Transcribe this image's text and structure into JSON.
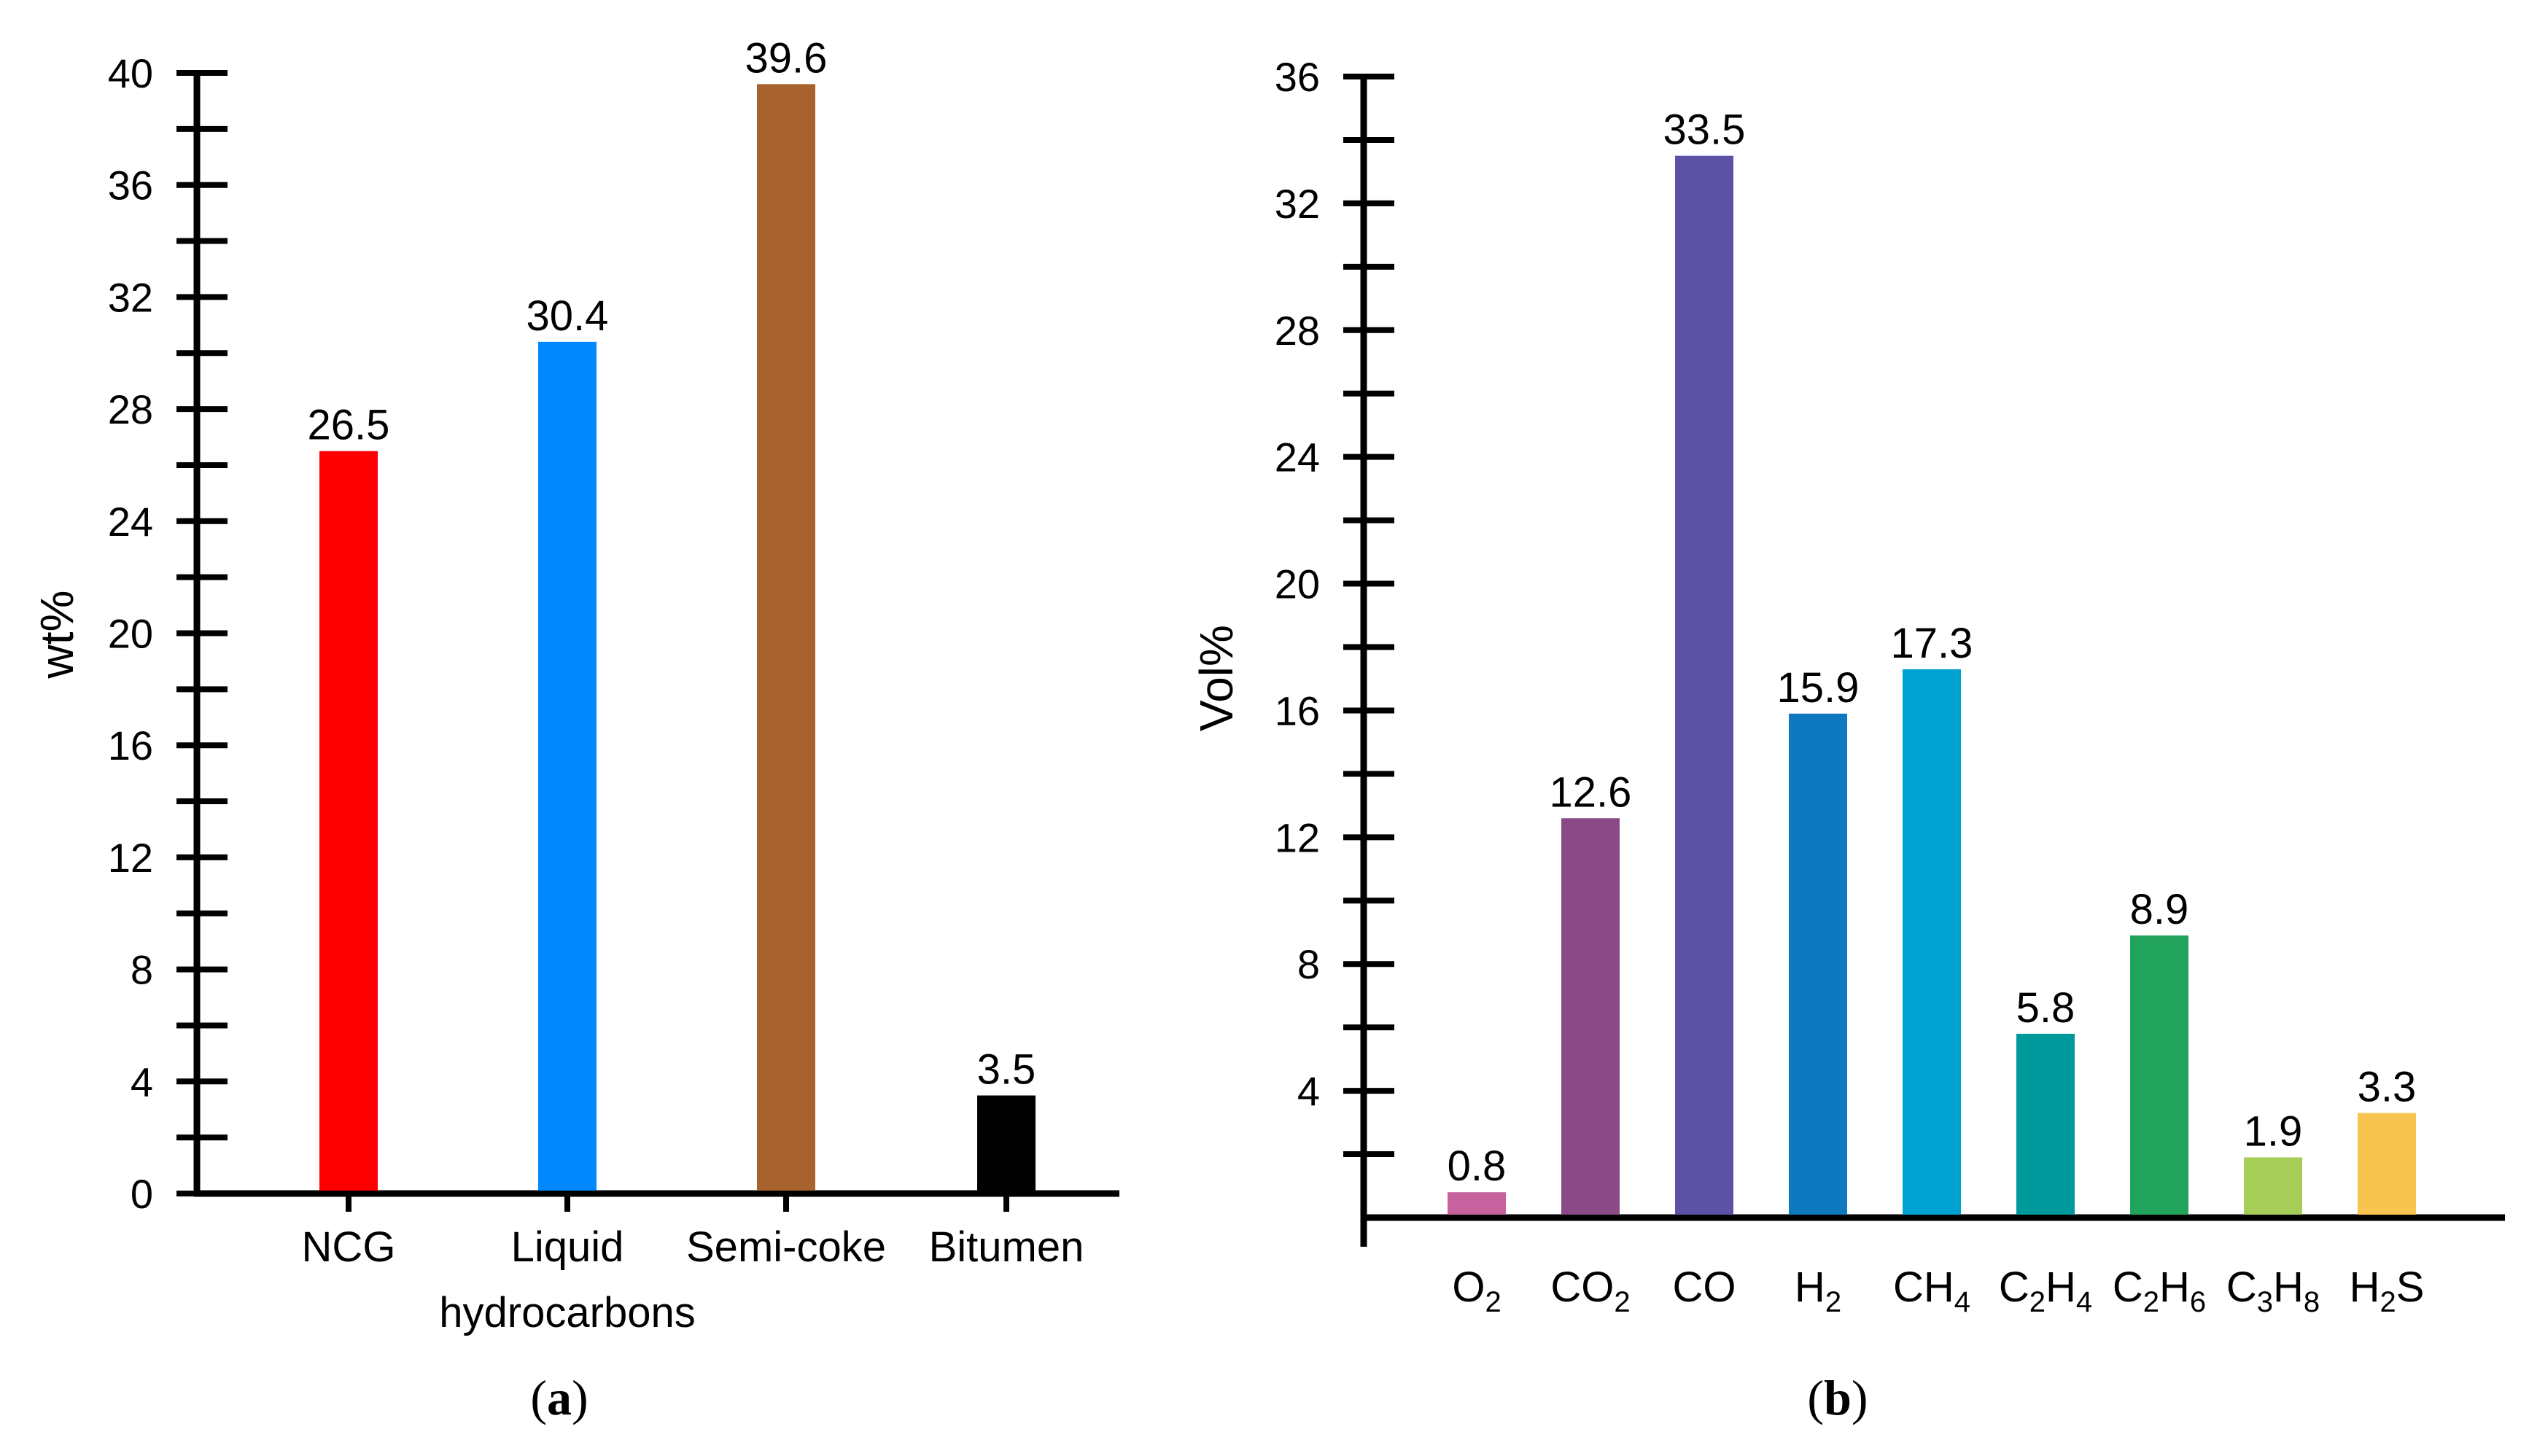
{
  "chart_data": [
    {
      "type": "bar",
      "caption": "a",
      "ylabel": "wt%",
      "xlabel": "",
      "ylim": [
        0,
        40
      ],
      "yticks": [
        0,
        4,
        8,
        12,
        16,
        20,
        24,
        28,
        32,
        36,
        40
      ],
      "ytick_labels": [
        "0",
        "4",
        "8",
        "12",
        "16",
        "20",
        "24",
        "28",
        "32",
        "36",
        "40"
      ],
      "categories": [
        {
          "lines": [
            {
              "text": "NCG"
            }
          ]
        },
        {
          "lines": [
            {
              "text": "Liquid"
            },
            {
              "text": "hydrocarbons"
            }
          ]
        },
        {
          "lines": [
            {
              "text": "Semi-coke"
            }
          ]
        },
        {
          "lines": [
            {
              "text": "Bitumen"
            }
          ]
        }
      ],
      "values": [
        26.5,
        30.4,
        39.6,
        3.5
      ],
      "value_labels": [
        "26.5",
        "30.4",
        "39.6",
        "3.5"
      ],
      "colors": [
        "#ff0000",
        "#0088ff",
        "#a8622e",
        "#000000"
      ]
    },
    {
      "type": "bar",
      "caption": "b",
      "ylabel": "Vol%",
      "xlabel": "",
      "ylim": [
        0,
        36
      ],
      "yticks": [
        4,
        8,
        12,
        16,
        20,
        24,
        28,
        32,
        36
      ],
      "ytick_labels": [
        "4",
        "8",
        "12",
        "16",
        "20",
        "24",
        "28",
        "32",
        "36"
      ],
      "categories": [
        {
          "parts": [
            {
              "t": "O"
            },
            {
              "t": "2",
              "sub": true
            }
          ]
        },
        {
          "parts": [
            {
              "t": "CO"
            },
            {
              "t": "2",
              "sub": true
            }
          ]
        },
        {
          "parts": [
            {
              "t": "CO"
            }
          ]
        },
        {
          "parts": [
            {
              "t": "H"
            },
            {
              "t": "2",
              "sub": true
            }
          ]
        },
        {
          "parts": [
            {
              "t": "CH"
            },
            {
              "t": "4",
              "sub": true
            }
          ]
        },
        {
          "parts": [
            {
              "t": "C"
            },
            {
              "t": "2",
              "sub": true
            },
            {
              "t": "H"
            },
            {
              "t": "4",
              "sub": true
            }
          ]
        },
        {
          "parts": [
            {
              "t": "C"
            },
            {
              "t": "2",
              "sub": true
            },
            {
              "t": "H"
            },
            {
              "t": "6",
              "sub": true
            }
          ]
        },
        {
          "parts": [
            {
              "t": "C"
            },
            {
              "t": "3",
              "sub": true
            },
            {
              "t": "H"
            },
            {
              "t": "8",
              "sub": true
            }
          ]
        },
        {
          "parts": [
            {
              "t": "H"
            },
            {
              "t": "2",
              "sub": true
            },
            {
              "t": "S"
            }
          ]
        }
      ],
      "values": [
        0.8,
        12.6,
        33.5,
        15.9,
        17.3,
        5.8,
        8.9,
        1.9,
        3.3
      ],
      "value_labels": [
        "0.8",
        "12.6",
        "33.5",
        "15.9",
        "17.3",
        "5.8",
        "8.9",
        "1.9",
        "3.3"
      ],
      "colors": [
        "#c8629e",
        "#8a4a88",
        "#5b52a6",
        "#0f79bf",
        "#00a2d2",
        "#00999c",
        "#22a35b",
        "#a6cd58",
        "#f8c450"
      ]
    }
  ]
}
